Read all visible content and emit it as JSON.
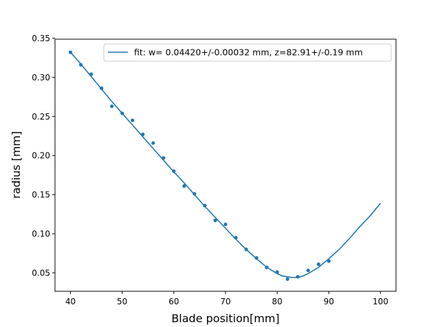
{
  "chart_data": {
    "type": "scatter",
    "title": "",
    "xlabel": "Blade position[mm]",
    "ylabel": "radius [mm]",
    "xlim": [
      37.0,
      103.0
    ],
    "ylim": [
      0.0264,
      0.3488
    ],
    "xticks": [
      40,
      50,
      60,
      70,
      80,
      90,
      100
    ],
    "yticks": [
      0.05,
      0.1,
      0.15,
      0.2,
      0.25,
      0.3,
      0.35
    ],
    "ytick_labels": [
      "0.05",
      "0.10",
      "0.15",
      "0.20",
      "0.25",
      "0.30",
      "0.35"
    ],
    "grid": false,
    "legend_position": "top-right",
    "color": "#1f77b4",
    "series": [
      {
        "kind": "scatter",
        "x": [
          40,
          42,
          44,
          46,
          48,
          50,
          52,
          54,
          56,
          58,
          60,
          62,
          64,
          66,
          68,
          70,
          72,
          74,
          76,
          78,
          80,
          82,
          84,
          86,
          88,
          90
        ],
        "y": [
          0.332,
          0.316,
          0.304,
          0.286,
          0.263,
          0.254,
          0.245,
          0.227,
          0.216,
          0.197,
          0.18,
          0.161,
          0.151,
          0.136,
          0.117,
          0.112,
          0.095,
          0.08,
          0.069,
          0.057,
          0.051,
          0.042,
          0.045,
          0.053,
          0.061,
          0.065
        ]
      },
      {
        "kind": "line",
        "name": "fit: w= 0.04420+/-0.00032 mm, z=82.91+/-0.19 mm",
        "x": [
          40,
          42,
          44,
          46,
          48,
          50,
          52,
          54,
          56,
          58,
          60,
          62,
          64,
          66,
          68,
          70,
          72,
          74,
          76,
          78,
          80,
          81,
          82,
          83,
          84,
          85,
          86,
          88,
          90,
          92,
          94,
          96,
          98,
          100
        ],
        "y": [
          0.332,
          0.317,
          0.301,
          0.285,
          0.269,
          0.254,
          0.239,
          0.224,
          0.209,
          0.194,
          0.179,
          0.165,
          0.15,
          0.135,
          0.121,
          0.107,
          0.093,
          0.08,
          0.068,
          0.057,
          0.049,
          0.046,
          0.045,
          0.044,
          0.044,
          0.046,
          0.049,
          0.057,
          0.068,
          0.08,
          0.094,
          0.109,
          0.123,
          0.139
        ]
      }
    ]
  }
}
